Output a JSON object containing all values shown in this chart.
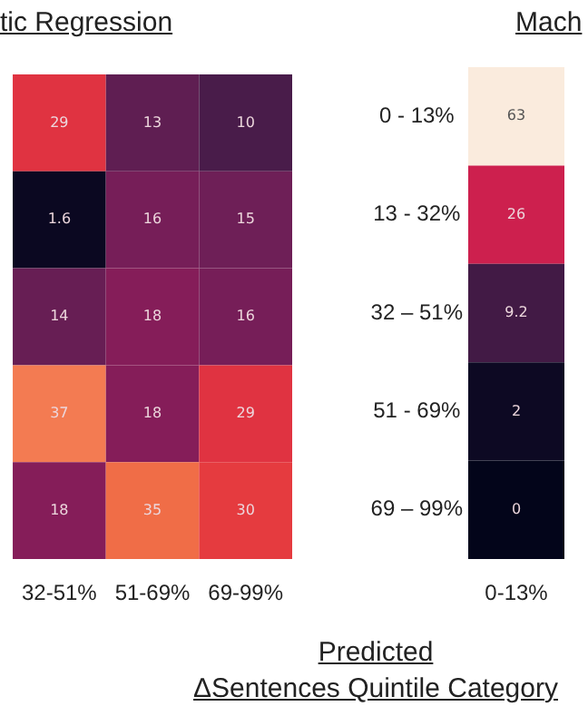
{
  "chart_data": [
    {
      "type": "heatmap",
      "title": "tic Regression",
      "categories": [
        "32-51%",
        "51-69%",
        "69-99%"
      ],
      "y_categories": [
        null,
        null,
        null,
        null,
        null
      ],
      "cells": [
        [
          29,
          13,
          10
        ],
        [
          1.6,
          16,
          15
        ],
        [
          14,
          18,
          16
        ],
        [
          37,
          18,
          29
        ],
        [
          18,
          35,
          30
        ]
      ],
      "data_labels": true,
      "tick_labels": "x"
    },
    {
      "type": "heatmap",
      "title": "Mach",
      "xlabel": "Predicted\nΔSentences Quintile Category",
      "categories": [
        "0-13%"
      ],
      "y_categories": [
        "0 - 13%",
        "13 - 32%",
        "32 – 51%",
        "51 - 69%",
        "69 – 99%"
      ],
      "cells": [
        [
          63
        ],
        [
          26
        ],
        [
          9.2
        ],
        [
          2
        ],
        [
          0
        ]
      ],
      "data_labels": true
    }
  ]
}
